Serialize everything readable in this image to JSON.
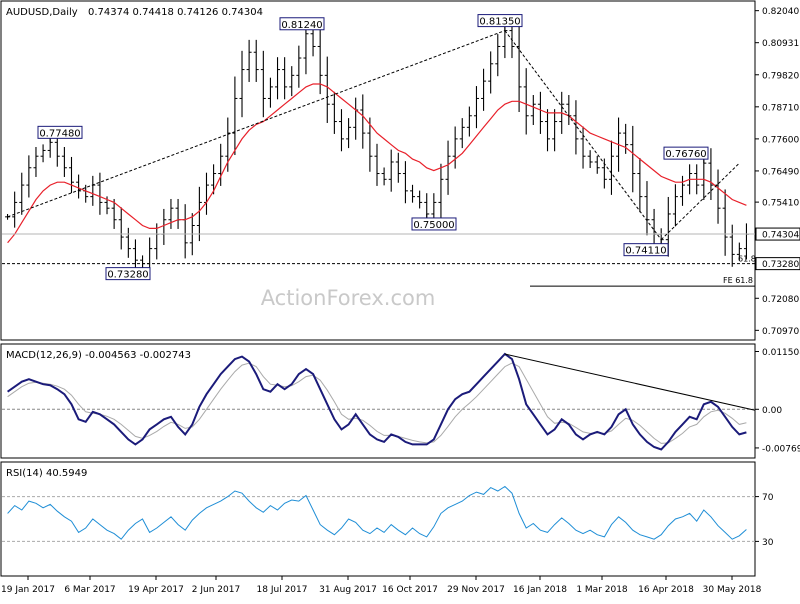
{
  "header": {
    "symbol": "AUDUSD,Daily",
    "ohlc": "0.74374 0.74418 0.74126 0.74304"
  },
  "watermark": "ActionForex.com",
  "colors": {
    "price": "#000000",
    "sma": "#e8202a",
    "macd_main": "#1b1b7a",
    "macd_signal": "#aaaaaa",
    "rsi": "#1f8ed6",
    "label_border": "#1b1b7a"
  },
  "chart_data": [
    {
      "type": "ohlc",
      "panel": "price",
      "y_ticks": [
        "0.82040",
        "0.80931",
        "0.79820",
        "0.78710",
        "0.77600",
        "0.76490",
        "0.75410",
        "0.74304",
        "0.73280",
        "0.72080",
        "0.70970"
      ],
      "ylim": [
        0.7067,
        0.8234
      ],
      "x_ticks": [
        "19 Jan 2017",
        "6 Mar 2017",
        "19 Apr 2017",
        "2 Jun 2017",
        "18 Jul 2017",
        "31 Aug 2017",
        "16 Oct 2017",
        "29 Nov 2017",
        "16 Jan 2018",
        "1 Mar 2018",
        "16 Apr 2018",
        "30 May 2018"
      ],
      "last_price": 0.74304,
      "last_price_label": "0.74304",
      "support_level": 0.7328,
      "support_label": "0.73280",
      "annotations": [
        {
          "text": "0.77480",
          "value": 0.7748
        },
        {
          "text": "0.73280",
          "value": 0.7328
        },
        {
          "text": "0.81240",
          "value": 0.8124
        },
        {
          "text": "0.75000",
          "value": 0.75
        },
        {
          "text": "0.81350",
          "value": 0.8135
        },
        {
          "text": "0.74110",
          "value": 0.7411
        },
        {
          "text": "0.76760",
          "value": 0.7676
        }
      ],
      "fib_labels": [
        "61.8",
        "FE 61.8"
      ],
      "fe_level": 0.725,
      "closes": [
        0.749,
        0.754,
        0.76,
        0.766,
        0.77,
        0.772,
        0.7748,
        0.77,
        0.766,
        0.761,
        0.758,
        0.756,
        0.76,
        0.754,
        0.752,
        0.748,
        0.742,
        0.738,
        0.734,
        0.7328,
        0.738,
        0.743,
        0.748,
        0.752,
        0.748,
        0.74,
        0.746,
        0.754,
        0.76,
        0.764,
        0.77,
        0.778,
        0.79,
        0.8,
        0.806,
        0.8,
        0.79,
        0.794,
        0.8,
        0.794,
        0.798,
        0.804,
        0.8124,
        0.808,
        0.798,
        0.788,
        0.782,
        0.776,
        0.78,
        0.786,
        0.778,
        0.77,
        0.764,
        0.762,
        0.768,
        0.764,
        0.758,
        0.756,
        0.754,
        0.75,
        0.754,
        0.762,
        0.77,
        0.776,
        0.78,
        0.784,
        0.79,
        0.796,
        0.802,
        0.808,
        0.8135,
        0.808,
        0.794,
        0.784,
        0.788,
        0.782,
        0.776,
        0.782,
        0.788,
        0.784,
        0.776,
        0.77,
        0.768,
        0.766,
        0.762,
        0.77,
        0.778,
        0.774,
        0.764,
        0.756,
        0.748,
        0.743,
        0.7411,
        0.75,
        0.756,
        0.76,
        0.764,
        0.76,
        0.7676,
        0.76,
        0.752,
        0.742,
        0.736,
        0.738,
        0.743
      ],
      "sma": [
        0.74,
        0.743,
        0.747,
        0.751,
        0.755,
        0.758,
        0.76,
        0.761,
        0.761,
        0.76,
        0.759,
        0.758,
        0.757,
        0.756,
        0.755,
        0.754,
        0.752,
        0.75,
        0.748,
        0.746,
        0.745,
        0.745,
        0.746,
        0.747,
        0.748,
        0.748,
        0.749,
        0.751,
        0.754,
        0.758,
        0.763,
        0.768,
        0.772,
        0.776,
        0.779,
        0.781,
        0.782,
        0.784,
        0.786,
        0.788,
        0.79,
        0.792,
        0.794,
        0.795,
        0.795,
        0.794,
        0.792,
        0.79,
        0.788,
        0.786,
        0.784,
        0.781,
        0.778,
        0.776,
        0.774,
        0.772,
        0.771,
        0.769,
        0.768,
        0.766,
        0.765,
        0.766,
        0.767,
        0.769,
        0.771,
        0.774,
        0.777,
        0.78,
        0.783,
        0.786,
        0.788,
        0.789,
        0.789,
        0.788,
        0.787,
        0.786,
        0.785,
        0.785,
        0.785,
        0.784,
        0.782,
        0.78,
        0.778,
        0.777,
        0.776,
        0.775,
        0.774,
        0.773,
        0.771,
        0.769,
        0.767,
        0.765,
        0.763,
        0.762,
        0.761,
        0.761,
        0.762,
        0.762,
        0.762,
        0.761,
        0.759,
        0.757,
        0.755,
        0.754,
        0.753
      ]
    },
    {
      "type": "line",
      "panel": "macd",
      "label": "MACD(12,26,9) -0.004563 -0.002743",
      "y_ticks": [
        "0.011508",
        "0.00",
        "-0.007694"
      ],
      "ylim": [
        -0.0095,
        0.0128
      ],
      "macd": [
        0.0035,
        0.0045,
        0.0055,
        0.006,
        0.0055,
        0.005,
        0.0048,
        0.004,
        0.003,
        0.001,
        -0.002,
        -0.0025,
        -0.0005,
        -0.001,
        -0.002,
        -0.003,
        -0.0045,
        -0.006,
        -0.007,
        -0.006,
        -0.004,
        -0.003,
        -0.002,
        -0.0015,
        -0.0035,
        -0.005,
        -0.003,
        0.0005,
        0.003,
        0.005,
        0.007,
        0.0085,
        0.01,
        0.0105,
        0.0095,
        0.007,
        0.004,
        0.0035,
        0.005,
        0.004,
        0.005,
        0.007,
        0.008,
        0.007,
        0.004,
        0.001,
        -0.002,
        -0.004,
        -0.003,
        -0.001,
        -0.003,
        -0.005,
        -0.006,
        -0.0065,
        -0.005,
        -0.0055,
        -0.0065,
        -0.007,
        -0.007,
        -0.007,
        -0.006,
        -0.003,
        0.0,
        0.002,
        0.003,
        0.0035,
        0.005,
        0.0065,
        0.008,
        0.0095,
        0.011,
        0.01,
        0.006,
        0.001,
        -0.001,
        -0.003,
        -0.005,
        -0.004,
        -0.002,
        -0.003,
        -0.005,
        -0.006,
        -0.005,
        -0.0045,
        -0.005,
        -0.0035,
        -0.001,
        0.0,
        -0.003,
        -0.005,
        -0.0065,
        -0.0075,
        -0.008,
        -0.0065,
        -0.0045,
        -0.003,
        -0.0015,
        -0.002,
        0.001,
        0.0015,
        0.0005,
        -0.0015,
        -0.0035,
        -0.005,
        -0.0046
      ],
      "signal": [
        0.0025,
        0.0035,
        0.0045,
        0.0052,
        0.0054,
        0.0052,
        0.005,
        0.0046,
        0.004,
        0.0028,
        0.001,
        -0.0005,
        -0.0008,
        -0.001,
        -0.0014,
        -0.002,
        -0.003,
        -0.0042,
        -0.0054,
        -0.0058,
        -0.0052,
        -0.0044,
        -0.0034,
        -0.0026,
        -0.003,
        -0.0038,
        -0.0035,
        -0.002,
        0.0,
        0.002,
        0.004,
        0.0058,
        0.0075,
        0.0088,
        0.0092,
        0.0085,
        0.0065,
        0.005,
        0.0048,
        0.0045,
        0.0047,
        0.0055,
        0.0065,
        0.0068,
        0.0058,
        0.0038,
        0.0015,
        -0.001,
        -0.002,
        -0.0018,
        -0.0022,
        -0.0032,
        -0.0044,
        -0.0052,
        -0.0052,
        -0.0054,
        -0.0058,
        -0.0062,
        -0.0065,
        -0.0067,
        -0.0065,
        -0.0052,
        -0.0034,
        -0.0015,
        0.0,
        0.0012,
        0.0025,
        0.004,
        0.0055,
        0.007,
        0.0085,
        0.0092,
        0.0085,
        0.006,
        0.0035,
        0.001,
        -0.0015,
        -0.0028,
        -0.0026,
        -0.0028,
        -0.0036,
        -0.0045,
        -0.0048,
        -0.0047,
        -0.0048,
        -0.0043,
        -0.003,
        -0.0018,
        -0.0022,
        -0.0032,
        -0.0045,
        -0.0058,
        -0.0068,
        -0.0067,
        -0.0058,
        -0.0048,
        -0.0035,
        -0.003,
        -0.0015,
        -0.0005,
        -0.0002,
        -0.0008,
        -0.0018,
        -0.003,
        -0.0027
      ]
    },
    {
      "type": "line",
      "panel": "rsi",
      "label": "RSI(14) 40.5949",
      "y_ticks": [
        "70",
        "30"
      ],
      "ylim": [
        0,
        100
      ],
      "rsi": [
        55,
        62,
        58,
        66,
        64,
        60,
        63,
        57,
        52,
        48,
        38,
        42,
        50,
        45,
        40,
        37,
        32,
        40,
        46,
        50,
        38,
        42,
        47,
        52,
        45,
        40,
        49,
        55,
        60,
        63,
        66,
        70,
        75,
        73,
        66,
        60,
        56,
        62,
        58,
        64,
        67,
        66,
        71,
        58,
        45,
        40,
        36,
        42,
        50,
        47,
        40,
        37,
        42,
        38,
        45,
        40,
        36,
        42,
        37,
        34,
        43,
        55,
        60,
        63,
        66,
        71,
        74,
        72,
        78,
        75,
        79,
        73,
        55,
        42,
        46,
        40,
        38,
        45,
        51,
        46,
        40,
        37,
        40,
        36,
        34,
        45,
        52,
        47,
        40,
        36,
        34,
        32,
        36,
        44,
        50,
        52,
        55,
        48,
        58,
        52,
        44,
        38,
        32,
        35,
        40.59
      ]
    }
  ]
}
